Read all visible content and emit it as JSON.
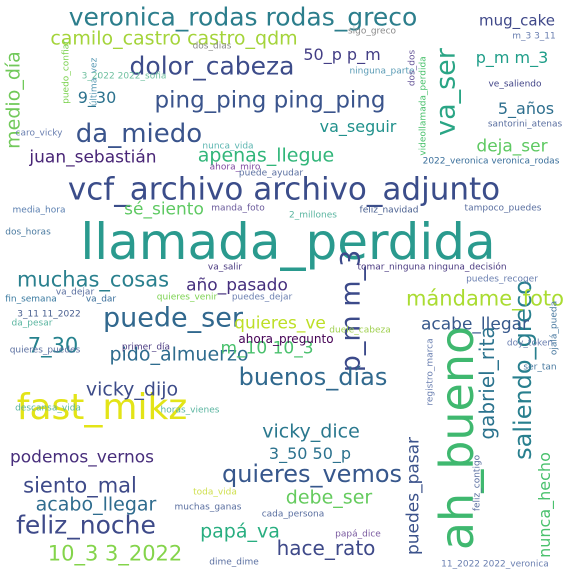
{
  "words": [
    {
      "text": "llamada_perdida",
      "color": "#2a9a8e"
    },
    {
      "text": "vcf_archivo archivo_adjunto",
      "color": "#3b4d8a"
    },
    {
      "text": "ah_bueno",
      "color": "#3fb86f"
    },
    {
      "text": "fast_mikz",
      "color": "#e3e417"
    },
    {
      "text": "veronica_rodas rodas_greco",
      "color": "#2c7e8c"
    },
    {
      "text": "camilo_castro castro_qdm",
      "color": "#a4d43a"
    },
    {
      "text": "dolor_cabeza",
      "color": "#3d4c8a"
    },
    {
      "text": "ping_ping ping_ping",
      "color": "#3a548c"
    },
    {
      "text": "da_miedo",
      "color": "#3a548c"
    },
    {
      "text": "va_ser",
      "color": "#2aa585"
    },
    {
      "text": "medio_día",
      "color": "#71c95a"
    },
    {
      "text": "puede_ser",
      "color": "#31688e"
    },
    {
      "text": "p_m m_3",
      "color": "#3c4a8a"
    },
    {
      "text": "saliendo_greco",
      "color": "#287f8e"
    },
    {
      "text": "gabriel_rita",
      "color": "#2b738e"
    },
    {
      "text": "buenos_días",
      "color": "#31698e"
    },
    {
      "text": "quieres_vemos",
      "color": "#37578c"
    },
    {
      "text": "feliz_noche",
      "color": "#3e4a89"
    },
    {
      "text": "muchas_cosas",
      "color": "#2a808e"
    },
    {
      "text": "mándame_foto",
      "color": "#aadc32"
    },
    {
      "text": "apenas_llegue",
      "color": "#32b67a"
    },
    {
      "text": "pido_almuerzo",
      "color": "#2f6c8e"
    },
    {
      "text": "vicky_dijo",
      "color": "#3d4c89"
    },
    {
      "text": "7_30",
      "color": "#26828e"
    },
    {
      "text": "10_3 3_2022",
      "color": "#84d44b"
    },
    {
      "text": "vicky_dice",
      "color": "#2a788e"
    },
    {
      "text": "siento_mal",
      "color": "#3e4a89"
    },
    {
      "text": "hace_rato",
      "color": "#3e4989"
    },
    {
      "text": "debe_ser",
      "color": "#65cb5e"
    },
    {
      "text": "acabo_llegar",
      "color": "#2f6c8e"
    },
    {
      "text": "papá_va",
      "color": "#28ae80"
    },
    {
      "text": "podemos_vernos",
      "color": "#472d7b"
    },
    {
      "text": "mug_cake",
      "color": "#3f4889"
    },
    {
      "text": "50_p p_m",
      "color": "#433e85"
    },
    {
      "text": "p_m m_3",
      "color": "#1f9e89"
    },
    {
      "text": "9_30",
      "color": "#2c728e"
    },
    {
      "text": "5_años",
      "color": "#2e6f8e"
    },
    {
      "text": "va_seguir",
      "color": "#21918c"
    },
    {
      "text": "deja_ser",
      "color": "#5ec962"
    },
    {
      "text": "juan_sebastián",
      "color": "#482576"
    },
    {
      "text": "sé_siento",
      "color": "#5ec962"
    },
    {
      "text": "año_pasado",
      "color": "#46307e"
    },
    {
      "text": "quieres_ve",
      "color": "#bddf26"
    },
    {
      "text": "acabe_llegar",
      "color": "#38598c"
    },
    {
      "text": "m_10 10_3",
      "color": "#4ac16d"
    },
    {
      "text": "3_50 50_p",
      "color": "#2c728e"
    },
    {
      "text": "puedes_pasar",
      "color": "#3b528b"
    },
    {
      "text": "nunca_hecho",
      "color": "#4ac16d"
    },
    {
      "text": "ahora_pregunto",
      "color": "#440154"
    },
    {
      "text": "dos_dias",
      "color": "#8a8a8a"
    },
    {
      "text": "sigo_greco",
      "color": "#8a8a8a"
    },
    {
      "text": "m_3 3_11",
      "color": "#6a7fb0"
    },
    {
      "text": "puedo_confiar",
      "color": "#7cd250"
    },
    {
      "text": "última_vez",
      "color": "#5b9bb5"
    },
    {
      "text": "3_2022 2022_sofia",
      "color": "#70c0a0"
    },
    {
      "text": "ninguna_parte",
      "color": "#5a9bb5"
    },
    {
      "text": "dos_dos",
      "color": "#6a5a9b"
    },
    {
      "text": "videollamada_perdida",
      "color": "#4ac16d"
    },
    {
      "text": "ve_saliendo",
      "color": "#414487"
    },
    {
      "text": "santorini_atenas",
      "color": "#5a6fa0"
    },
    {
      "text": "caro_vicky",
      "color": "#6a7fb0"
    },
    {
      "text": "nunca_vida",
      "color": "#5bb5b0"
    },
    {
      "text": "ahora_miro",
      "color": "#7f4aa0"
    },
    {
      "text": "puede_ayudar",
      "color": "#5a6fa0"
    },
    {
      "text": "2022_veronica veronica_rodas",
      "color": "#3a6f9b"
    },
    {
      "text": "media_hora",
      "color": "#5a7fb0"
    },
    {
      "text": "manda_foto",
      "color": "#6a5a9b"
    },
    {
      "text": "2_millones",
      "color": "#5ab5a0"
    },
    {
      "text": "feliz_navidad",
      "color": "#4a6090"
    },
    {
      "text": "tampoco_puedes",
      "color": "#5a6fa0"
    },
    {
      "text": "dos_horas",
      "color": "#4a7aa0"
    },
    {
      "text": "va_salir",
      "color": "#4a3a80"
    },
    {
      "text": "tomar_ninguna ninguna_decisión",
      "color": "#4a3a80"
    },
    {
      "text": "va_dejar",
      "color": "#5a6fa0"
    },
    {
      "text": "fin_semana",
      "color": "#3a7aa0"
    },
    {
      "text": "va_dar",
      "color": "#3a6f9b"
    },
    {
      "text": "quieres_venir",
      "color": "#7cd250"
    },
    {
      "text": "puedes_dejar",
      "color": "#6a7fb0"
    },
    {
      "text": "puedes_recoger",
      "color": "#6a7fb0"
    },
    {
      "text": "da_pesar",
      "color": "#5ab5a0"
    },
    {
      "text": "3_11 11_2022",
      "color": "#4a6090"
    },
    {
      "text": "quieres_puedes",
      "color": "#5a6fa0"
    },
    {
      "text": "primer_día",
      "color": "#4a3a80"
    },
    {
      "text": "duele_cabeza",
      "color": "#a0d050"
    },
    {
      "text": "doy_token",
      "color": "#6a7fb0"
    },
    {
      "text": "ojalá_pueda",
      "color": "#4a7aa0"
    },
    {
      "text": "ser_tan",
      "color": "#4a7aa0"
    },
    {
      "text": "descansa_vida",
      "color": "#5ab5a0"
    },
    {
      "text": "horas_vienes",
      "color": "#5ab5a0"
    },
    {
      "text": "registro_marca",
      "color": "#6a7fb0"
    },
    {
      "text": "feliz_contigo",
      "color": "#5a6fa0"
    },
    {
      "text": "toda_vida",
      "color": "#d0e050"
    },
    {
      "text": "muchas_ganas",
      "color": "#5a6fa0"
    },
    {
      "text": "cada_persona",
      "color": "#5a6fa0"
    },
    {
      "text": "papá_dice",
      "color": "#7a5aa0"
    },
    {
      "text": "dime_dime",
      "color": "#5a6fa0"
    },
    {
      "text": "11_2022 2022_veronica",
      "color": "#6a7fb0"
    }
  ]
}
